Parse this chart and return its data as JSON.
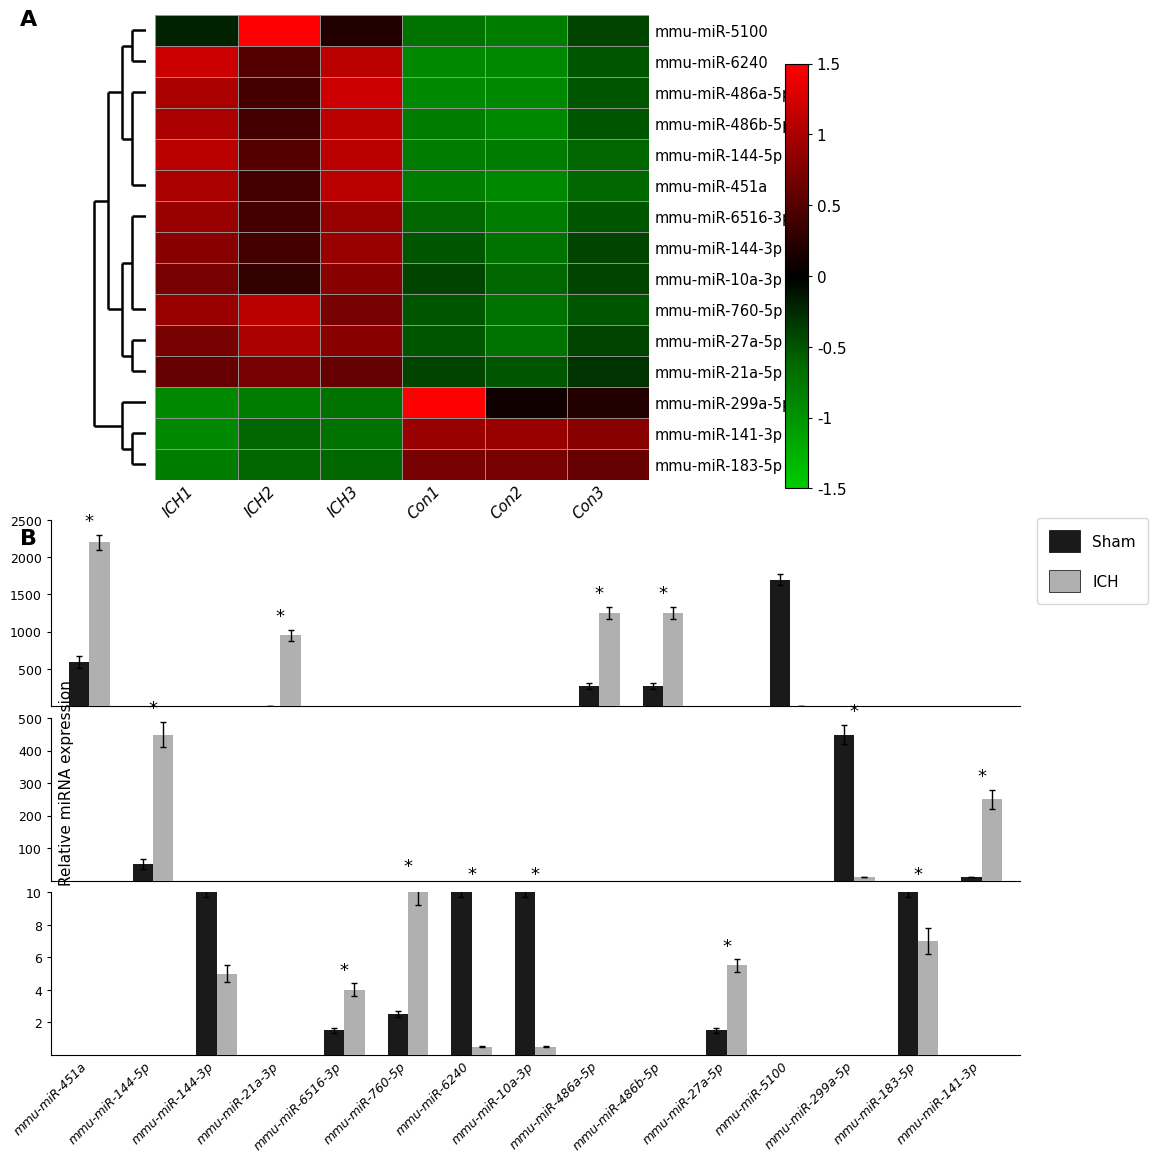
{
  "heatmap_rows": [
    "mmu-miR-5100",
    "mmu-miR-6240",
    "mmu-miR-486a-5p",
    "mmu-miR-486b-5p",
    "mmu-miR-144-5p",
    "mmu-miR-451a",
    "mmu-miR-6516-3p",
    "mmu-miR-144-3p",
    "mmu-miR-10a-3p",
    "mmu-miR-760-5p",
    "mmu-miR-27a-5p",
    "mmu-miR-21a-5p",
    "mmu-miR-299a-5p",
    "mmu-miR-141-3p",
    "mmu-miR-183-5p"
  ],
  "heatmap_cols": [
    "ICH1",
    "ICH2",
    "ICH3",
    "Con1",
    "Con2",
    "Con3"
  ],
  "heatmap_data": [
    [
      -0.2,
      1.5,
      0.2,
      -0.7,
      -0.8,
      -0.4
    ],
    [
      1.2,
      0.5,
      1.1,
      -0.9,
      -0.9,
      -0.5
    ],
    [
      1.0,
      0.4,
      1.2,
      -0.9,
      -0.9,
      -0.5
    ],
    [
      1.0,
      0.4,
      1.1,
      -0.8,
      -0.9,
      -0.5
    ],
    [
      1.1,
      0.5,
      1.1,
      -0.8,
      -0.8,
      -0.6
    ],
    [
      1.0,
      0.4,
      1.1,
      -0.8,
      -0.9,
      -0.6
    ],
    [
      0.9,
      0.4,
      0.9,
      -0.6,
      -0.8,
      -0.5
    ],
    [
      0.8,
      0.4,
      0.9,
      -0.5,
      -0.7,
      -0.4
    ],
    [
      0.7,
      0.3,
      0.8,
      -0.4,
      -0.6,
      -0.4
    ],
    [
      0.9,
      1.1,
      0.7,
      -0.5,
      -0.7,
      -0.5
    ],
    [
      0.7,
      1.0,
      0.8,
      -0.5,
      -0.7,
      -0.4
    ],
    [
      0.6,
      0.7,
      0.6,
      -0.4,
      -0.5,
      -0.3
    ],
    [
      -0.9,
      -0.8,
      -0.7,
      1.5,
      0.1,
      0.2
    ],
    [
      -0.9,
      -0.6,
      -0.7,
      0.9,
      0.9,
      0.8
    ],
    [
      -0.8,
      -0.6,
      -0.6,
      0.7,
      0.7,
      0.6
    ]
  ],
  "bar_mirnas": [
    "mmu-miR-451a",
    "mmu-miR-144-5p",
    "mmu-miR-144-3p",
    "mmu-miR-21a-3p",
    "mmu-miR-6516-3p",
    "mmu-miR-760-5p",
    "mmu-miR-6240",
    "mmu-miR-10a-3p",
    "mmu-miR-486a-5p",
    "mmu-miR-486b-5p",
    "mmu-miR-27a-5p",
    "mmu-miR-5100",
    "mmu-miR-299a-5p",
    "mmu-miR-183-5p",
    "mmu-miR-141-3p"
  ],
  "sham_values": [
    600,
    50,
    10,
    10,
    1.5,
    2.5,
    10,
    10,
    275,
    275,
    1.5,
    1700,
    450,
    10,
    10
  ],
  "ich_values": [
    2200,
    450,
    5,
    950,
    4.0,
    10,
    0.5,
    0.5,
    1250,
    1250,
    5.5,
    10,
    10,
    7,
    250
  ],
  "sham_errors": [
    80,
    15,
    0.3,
    0.3,
    0.15,
    0.2,
    0.3,
    0.3,
    40,
    40,
    0.15,
    80,
    30,
    0.3,
    0.3
  ],
  "ich_errors": [
    100,
    40,
    0.5,
    80,
    0.4,
    0.8,
    0.05,
    0.05,
    80,
    80,
    0.4,
    0.5,
    0.5,
    0.8,
    30
  ],
  "significant": [
    true,
    true,
    false,
    true,
    true,
    true,
    true,
    true,
    true,
    true,
    true,
    false,
    true,
    true,
    true
  ],
  "sham_color": "#1a1a1a",
  "ich_color": "#b0b0b0",
  "ylabel": "Relative miRNA expression",
  "panel_a_label": "A",
  "panel_b_label": "B",
  "tiers": [
    0,
    1,
    2,
    0,
    2,
    2,
    2,
    2,
    0,
    0,
    2,
    0,
    1,
    2,
    1
  ]
}
